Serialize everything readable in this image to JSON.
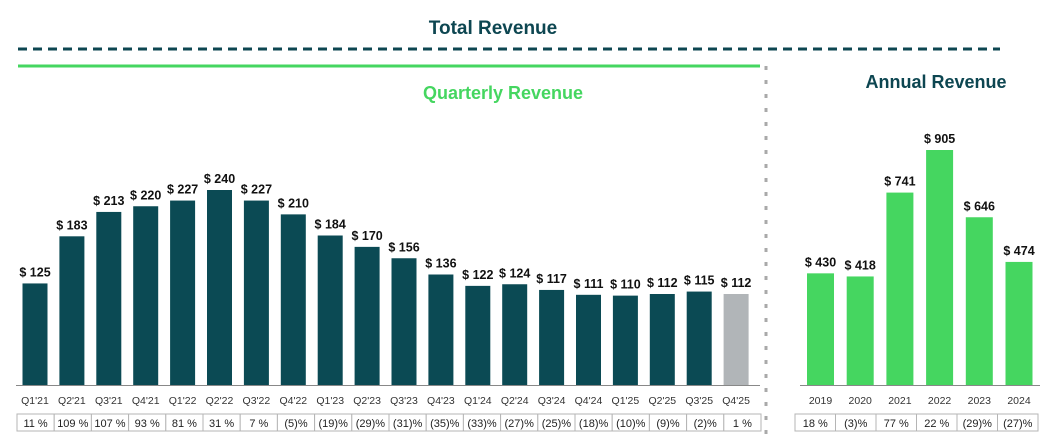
{
  "title": "Total Revenue",
  "colors": {
    "title": "#0d4651",
    "quarterly_bar": "#0b4a54",
    "forecast_bar": "#b1b5b8",
    "annual_bar": "#45d660",
    "accent_green": "#45d660",
    "divider": "#a9a9a9"
  },
  "chart_data": [
    {
      "type": "bar",
      "title": "Quarterly Revenue",
      "value_prefix": "$ ",
      "categories": [
        "Q1'21",
        "Q2'21",
        "Q3'21",
        "Q4'21",
        "Q1'22",
        "Q2'22",
        "Q3'22",
        "Q4'22",
        "Q1'23",
        "Q2'23",
        "Q3'23",
        "Q4'23",
        "Q1'24",
        "Q2'24",
        "Q3'24",
        "Q4'24",
        "Q1'25",
        "Q2'25",
        "Q3'25",
        "Q4'25"
      ],
      "values": [
        125,
        183,
        213,
        220,
        227,
        240,
        227,
        210,
        184,
        170,
        156,
        136,
        122,
        124,
        117,
        111,
        110,
        112,
        115,
        112
      ],
      "data_labels": [
        "$ 125",
        "$ 183",
        "$ 213",
        "$ 220",
        "$ 227",
        "$ 240",
        "$ 227",
        "$ 210",
        "$ 184",
        "$ 170",
        "$ 156",
        "$ 136",
        "$ 122",
        "$ 124",
        "$ 117",
        "$ 111",
        "$ 110",
        "$ 112",
        "$ 115",
        "$ 112"
      ],
      "growth": [
        "11 %",
        "109 %",
        "107 %",
        "93 %",
        "81 %",
        "31 %",
        "7 %",
        "(5)%",
        "(19)%",
        "(29)%",
        "(31)%",
        "(35)%",
        "(33)%",
        "(27)%",
        "(25)%",
        "(18)%",
        "(10)%",
        "(9)%",
        "(2)%",
        "1 %"
      ],
      "highlighted": [
        "Q4'25"
      ],
      "ylim": [
        0,
        240
      ],
      "grid": false
    },
    {
      "type": "bar",
      "title": "Annual Revenue",
      "value_prefix": "$ ",
      "categories": [
        "2019",
        "2020",
        "2021",
        "2022",
        "2023",
        "2024"
      ],
      "values": [
        430,
        418,
        741,
        905,
        646,
        474
      ],
      "data_labels": [
        "$ 430",
        "$ 418",
        "$ 741",
        "$ 905",
        "$ 646",
        "$ 474"
      ],
      "growth": [
        "18 %",
        "(3)%",
        "77 %",
        "22 %",
        "(29)%",
        "(27)%"
      ],
      "ylim": [
        0,
        905
      ],
      "grid": false
    }
  ]
}
